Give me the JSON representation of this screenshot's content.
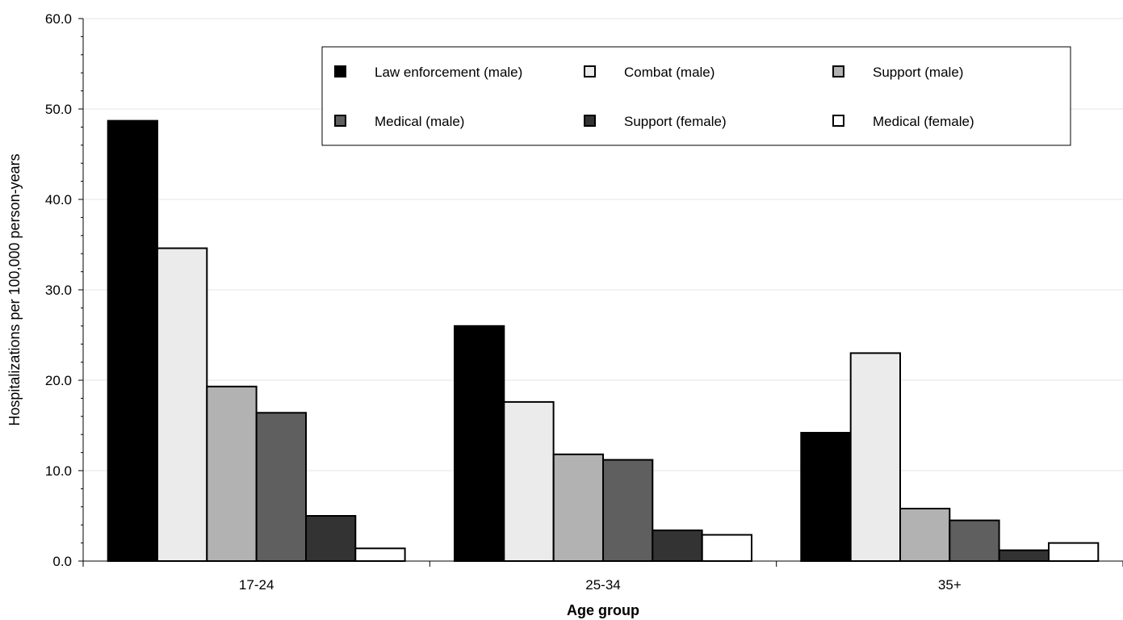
{
  "chart_data": {
    "type": "bar",
    "title": "",
    "xlabel": "Age group",
    "ylabel": "Hospitalizations per 100,000 person-years",
    "ylim": [
      0,
      60
    ],
    "yticks": [
      "0.0",
      "10.0",
      "20.0",
      "30.0",
      "40.0",
      "50.0",
      "60.0"
    ],
    "categories": [
      "17-24",
      "25-34",
      "35+"
    ],
    "grid": true,
    "legend_position": "top-right",
    "series": [
      {
        "name": "Law enforcement (male)",
        "values": [
          48.7,
          26.0,
          14.2
        ],
        "color": "#000000"
      },
      {
        "name": "Combat (male)",
        "values": [
          34.6,
          17.6,
          23.0
        ],
        "color": "#ebebeb"
      },
      {
        "name": "Support (male)",
        "values": [
          19.3,
          11.8,
          5.8
        ],
        "color": "#b2b2b2"
      },
      {
        "name": "Medical (male)",
        "values": [
          16.4,
          11.2,
          4.5
        ],
        "color": "#5f5f5f"
      },
      {
        "name": "Support (female)",
        "values": [
          5.0,
          3.4,
          1.2
        ],
        "color": "#333333"
      },
      {
        "name": "Medical (female)",
        "values": [
          1.4,
          2.9,
          2.0
        ],
        "color": "#ffffff"
      }
    ]
  }
}
